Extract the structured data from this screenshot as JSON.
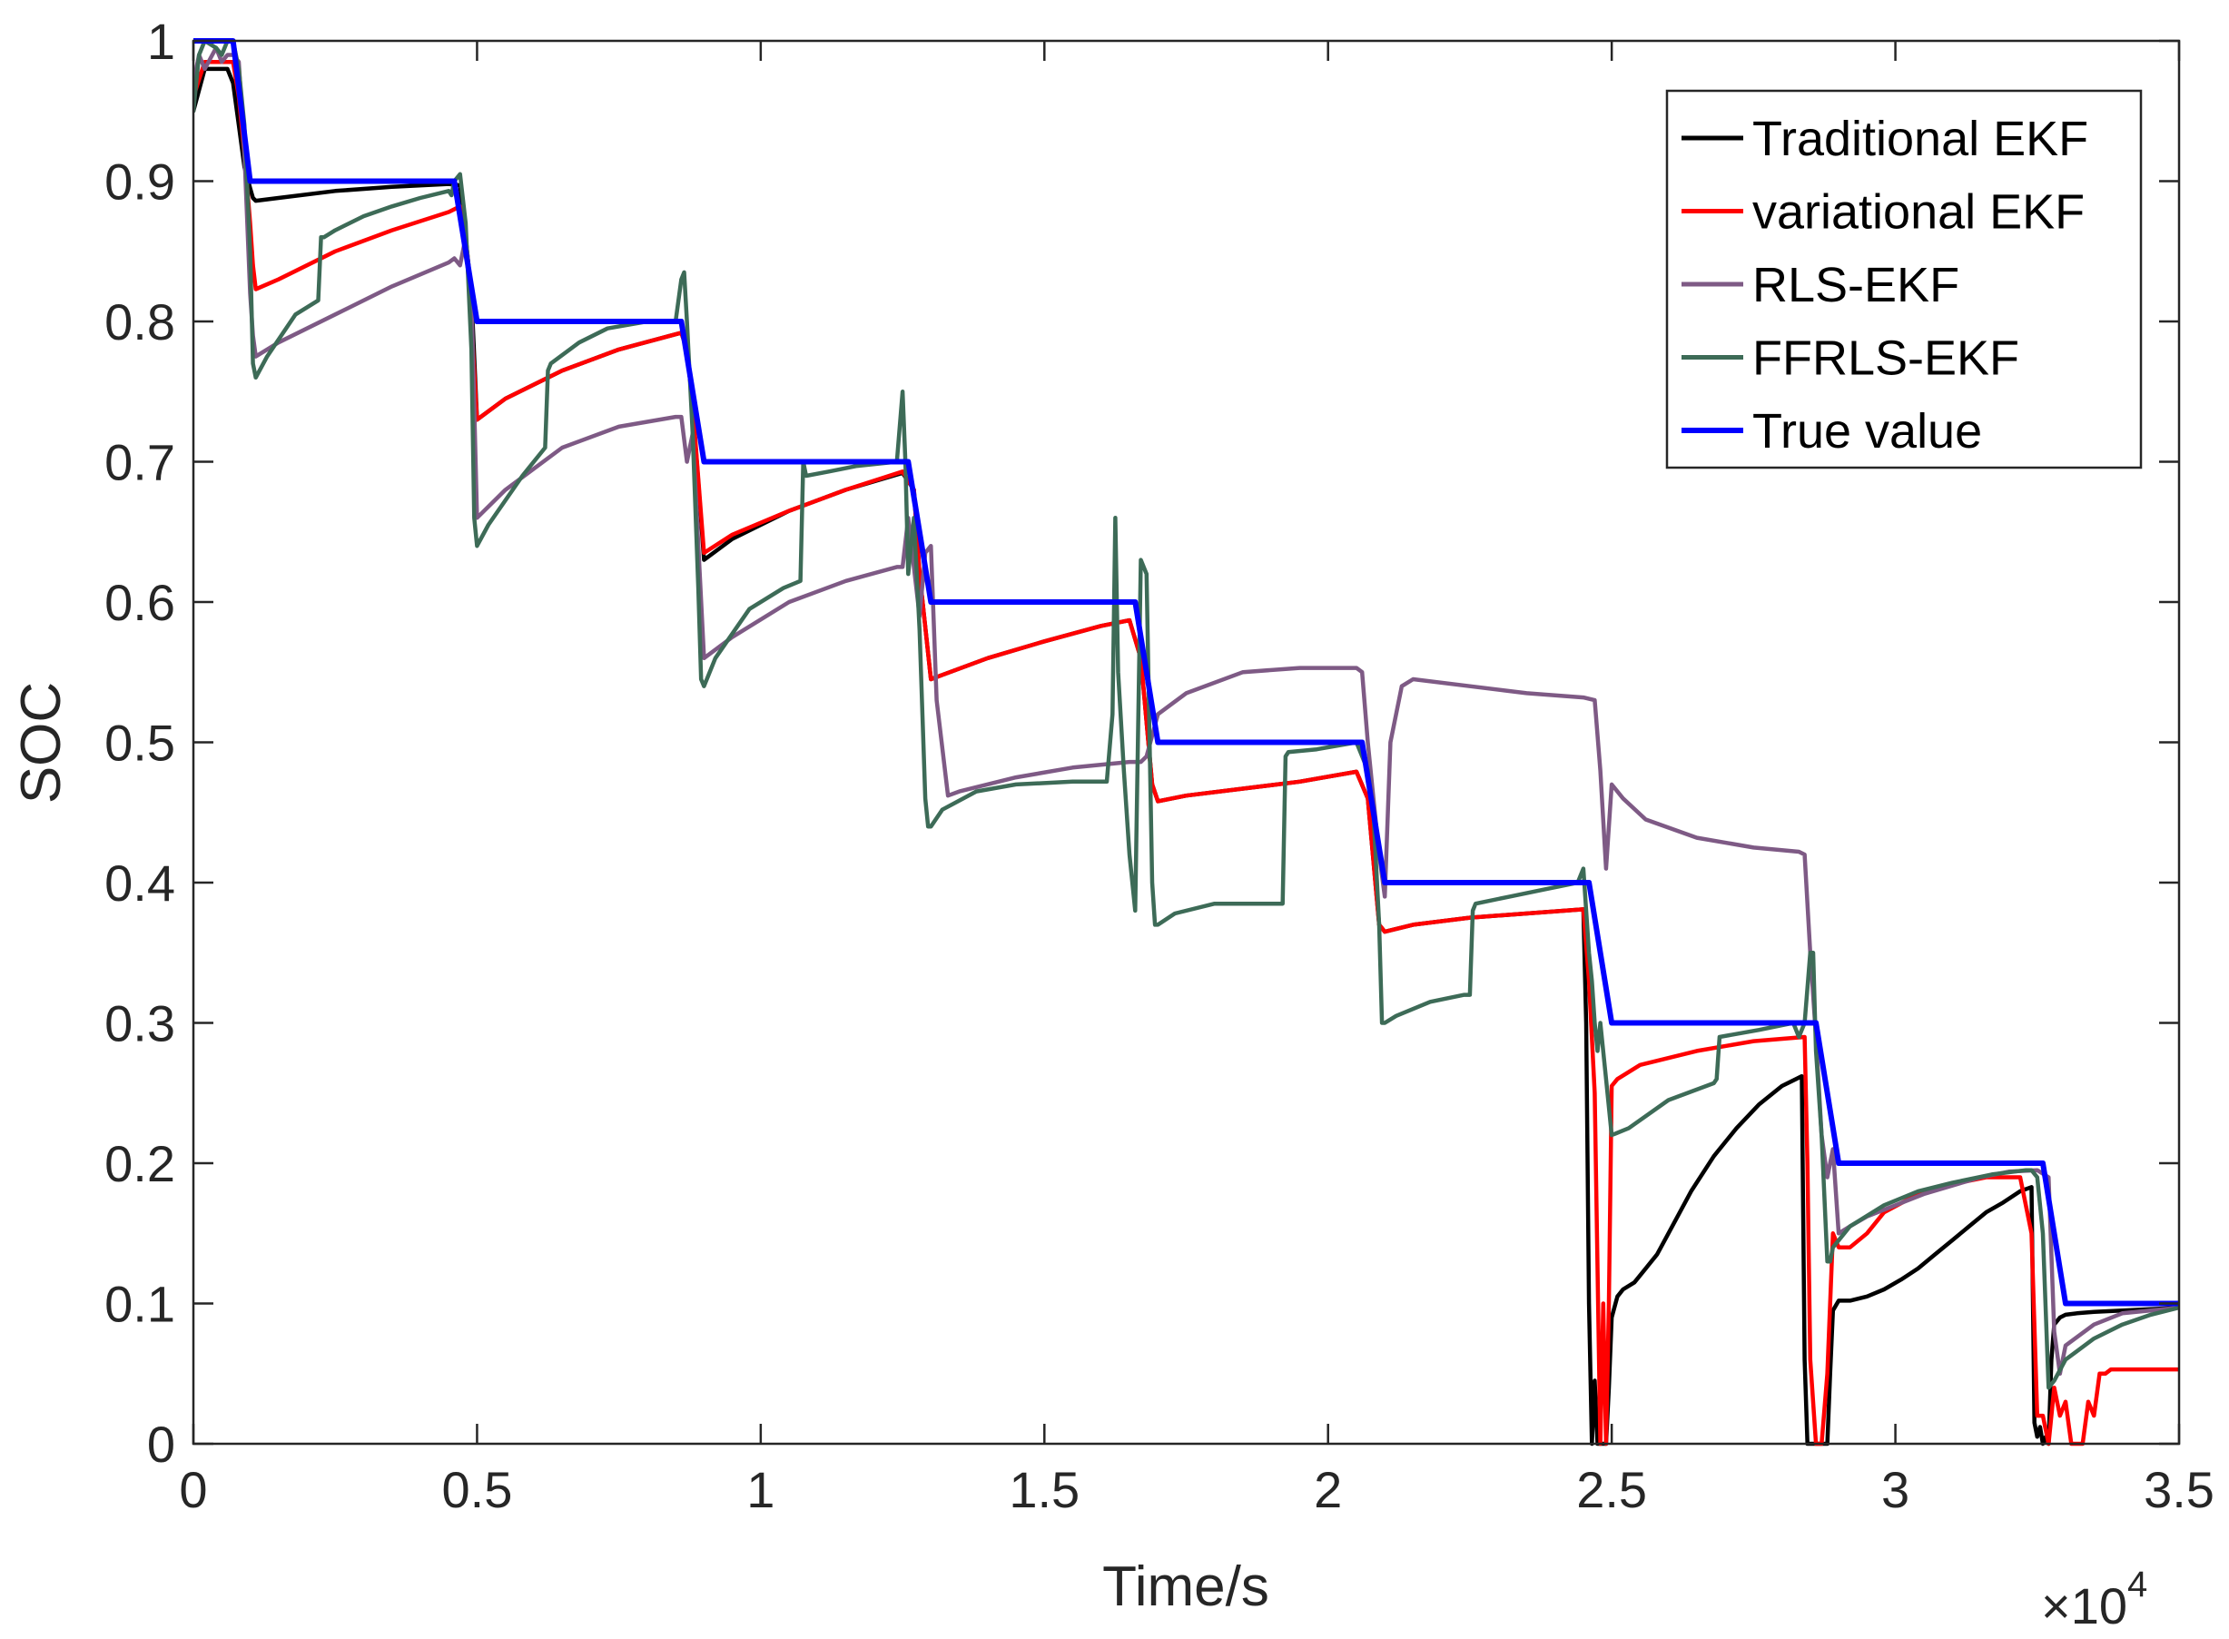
{
  "chart_data": {
    "type": "line",
    "title": "",
    "xlabel": "Time/s",
    "ylabel": "SOC",
    "xlim": [
      0,
      35000
    ],
    "ylim": [
      0,
      1
    ],
    "x_exponent_label": "×10",
    "x_exponent_power": "4",
    "xticks": [
      0,
      5000,
      10000,
      15000,
      20000,
      25000,
      30000,
      35000
    ],
    "xtick_labels": [
      "0",
      "0.5",
      "1",
      "1.5",
      "2",
      "2.5",
      "3",
      "3.5"
    ],
    "yticks": [
      0,
      0.1,
      0.2,
      0.3,
      0.4,
      0.5,
      0.6,
      0.7,
      0.8,
      0.9,
      1
    ],
    "ytick_labels": [
      "0",
      "0.1",
      "0.2",
      "0.3",
      "0.4",
      "0.5",
      "0.6",
      "0.7",
      "0.8",
      "0.9",
      "1"
    ],
    "legend_position": "top-right",
    "series": [
      {
        "name": "Traditional EKF",
        "color": "#000000",
        "x": [
          0,
          200,
          400,
          600,
          700,
          800,
          900,
          1000,
          1050,
          1100,
          1500,
          2500,
          3500,
          4500,
          4700,
          4800,
          4900,
          5000,
          5500,
          6500,
          7500,
          8600,
          8700,
          8800,
          9000,
          9500,
          10500,
          11500,
          12500,
          12700,
          12800,
          13000,
          13200,
          14000,
          15000,
          16000,
          16500,
          16700,
          16900,
          17000,
          17500,
          18500,
          19500,
          20500,
          20700,
          20900,
          21000,
          21500,
          22500,
          23500,
          24500,
          24550,
          24600,
          24650,
          24700,
          24750,
          24800,
          24850,
          24900,
          24950,
          25000,
          25100,
          25200,
          25400,
          25600,
          25800,
          26000,
          26400,
          26800,
          27200,
          27600,
          28000,
          28350,
          28400,
          28450,
          28500,
          28600,
          28700,
          28800,
          28850,
          28900,
          29000,
          29200,
          29500,
          29800,
          30100,
          30400,
          30700,
          31000,
          31300,
          31600,
          31900,
          32200,
          32400,
          32450,
          32500,
          32550,
          32600,
          32650,
          32700,
          32750,
          32800,
          32900,
          33000,
          33200,
          33500,
          34000,
          34500,
          35000
        ],
        "y": [
          0.95,
          0.98,
          0.98,
          0.98,
          0.97,
          0.94,
          0.91,
          0.895,
          0.888,
          0.886,
          0.888,
          0.893,
          0.896,
          0.898,
          0.897,
          0.86,
          0.82,
          0.73,
          0.745,
          0.765,
          0.78,
          0.792,
          0.78,
          0.74,
          0.63,
          0.645,
          0.665,
          0.68,
          0.692,
          0.68,
          0.62,
          0.545,
          0.548,
          0.56,
          0.572,
          0.583,
          0.587,
          0.56,
          0.47,
          0.458,
          0.462,
          0.467,
          0.472,
          0.479,
          0.46,
          0.37,
          0.365,
          0.37,
          0.375,
          0.378,
          0.381,
          0.3,
          0.1,
          0.0,
          0.045,
          0.0,
          0.0,
          0.0,
          0.0,
          0.04,
          0.09,
          0.105,
          0.11,
          0.115,
          0.125,
          0.135,
          0.15,
          0.18,
          0.205,
          0.225,
          0.242,
          0.255,
          0.262,
          0.06,
          0.0,
          0.0,
          0.0,
          0.0,
          0.0,
          0.05,
          0.095,
          0.102,
          0.102,
          0.105,
          0.11,
          0.117,
          0.125,
          0.135,
          0.145,
          0.155,
          0.165,
          0.172,
          0.18,
          0.183,
          0.015,
          0.005,
          0.012,
          0.0,
          0.005,
          0.0,
          0.06,
          0.085,
          0.09,
          0.092,
          0.093,
          0.094,
          0.095,
          0.096,
          0.097
        ]
      },
      {
        "name": "variational EKF",
        "color": "#ff0000",
        "x": [
          0,
          200,
          400,
          600,
          700,
          800,
          900,
          1000,
          1050,
          1100,
          1500,
          2500,
          3500,
          4500,
          4700,
          4800,
          4900,
          5000,
          5500,
          6500,
          7500,
          8600,
          8700,
          8800,
          9000,
          9500,
          10500,
          11500,
          12500,
          12700,
          12800,
          13000,
          13200,
          14000,
          15000,
          16000,
          16500,
          16700,
          16900,
          17000,
          17500,
          18500,
          19500,
          20500,
          20700,
          20900,
          21000,
          21500,
          22500,
          23500,
          24500,
          24600,
          24700,
          24800,
          24850,
          24900,
          24950,
          25000,
          25100,
          25500,
          26500,
          27500,
          28400,
          28450,
          28500,
          28600,
          28700,
          28800,
          28900,
          29000,
          29200,
          29500,
          29800,
          30400,
          31000,
          31600,
          32200,
          32400,
          32500,
          32600,
          32700,
          32800,
          32900,
          33000,
          33100,
          33200,
          33300,
          33400,
          33500,
          33600,
          33700,
          33800,
          33900,
          34000,
          34500,
          35000
        ],
        "y": [
          0.96,
          0.985,
          0.985,
          0.985,
          0.985,
          0.96,
          0.92,
          0.87,
          0.84,
          0.823,
          0.83,
          0.85,
          0.865,
          0.878,
          0.882,
          0.86,
          0.8,
          0.73,
          0.745,
          0.765,
          0.78,
          0.792,
          0.78,
          0.74,
          0.635,
          0.648,
          0.665,
          0.68,
          0.693,
          0.68,
          0.62,
          0.545,
          0.548,
          0.56,
          0.572,
          0.583,
          0.587,
          0.56,
          0.47,
          0.458,
          0.462,
          0.467,
          0.472,
          0.479,
          0.46,
          0.37,
          0.365,
          0.37,
          0.375,
          0.378,
          0.381,
          0.33,
          0.25,
          0.0,
          0.1,
          0.0,
          0.1,
          0.255,
          0.26,
          0.27,
          0.28,
          0.287,
          0.29,
          0.2,
          0.06,
          0.0,
          0.0,
          0.05,
          0.15,
          0.14,
          0.14,
          0.15,
          0.165,
          0.178,
          0.185,
          0.19,
          0.19,
          0.15,
          0.02,
          0.02,
          0.0,
          0.04,
          0.02,
          0.03,
          0.0,
          0.0,
          0.0,
          0.03,
          0.02,
          0.05,
          0.05,
          0.053,
          0.053,
          0.053,
          0.053,
          0.053
        ]
      },
      {
        "name": "RLS-EKF",
        "color": "#7e5a85",
        "x": [
          0,
          100,
          200,
          400,
          500,
          600,
          700,
          800,
          900,
          1000,
          1050,
          1100,
          1500,
          2500,
          3500,
          4500,
          4600,
          4700,
          4800,
          4900,
          5000,
          5500,
          6500,
          7500,
          8500,
          8600,
          8700,
          8800,
          9000,
          9500,
          10500,
          11500,
          12400,
          12500,
          12600,
          12800,
          12900,
          13000,
          13100,
          13300,
          13500,
          14500,
          15500,
          16500,
          16600,
          16700,
          16800,
          17000,
          17500,
          18500,
          19500,
          20300,
          20500,
          20600,
          20700,
          20800,
          20900,
          21000,
          21100,
          21300,
          21500,
          22500,
          23500,
          24500,
          24700,
          24800,
          24900,
          25000,
          25200,
          25600,
          26500,
          27500,
          28300,
          28400,
          28500,
          28600,
          28700,
          28800,
          28900,
          29000,
          29200,
          29500,
          30000,
          30500,
          31000,
          31500,
          32000,
          32500,
          32700,
          32800,
          32900,
          33000,
          33500,
          34000,
          35000
        ],
        "y": [
          0.97,
          0.99,
          0.98,
          0.995,
          0.985,
          0.99,
          0.99,
          0.985,
          0.92,
          0.82,
          0.79,
          0.775,
          0.785,
          0.805,
          0.825,
          0.842,
          0.845,
          0.84,
          0.86,
          0.82,
          0.66,
          0.68,
          0.71,
          0.725,
          0.732,
          0.732,
          0.7,
          0.72,
          0.56,
          0.575,
          0.6,
          0.615,
          0.625,
          0.625,
          0.66,
          0.59,
          0.635,
          0.64,
          0.53,
          0.462,
          0.465,
          0.475,
          0.482,
          0.486,
          0.486,
          0.486,
          0.49,
          0.52,
          0.535,
          0.55,
          0.553,
          0.553,
          0.553,
          0.55,
          0.5,
          0.46,
          0.42,
          0.39,
          0.5,
          0.54,
          0.545,
          0.54,
          0.535,
          0.532,
          0.53,
          0.48,
          0.41,
          0.47,
          0.46,
          0.445,
          0.432,
          0.425,
          0.422,
          0.42,
          0.35,
          0.29,
          0.22,
          0.19,
          0.21,
          0.15,
          0.155,
          0.162,
          0.17,
          0.178,
          0.184,
          0.19,
          0.194,
          0.195,
          0.19,
          0.08,
          0.05,
          0.07,
          0.085,
          0.093,
          0.097
        ]
      },
      {
        "name": "FFRLS-EKF",
        "color": "#3d6b57",
        "x": [
          0,
          100,
          200,
          400,
          500,
          600,
          700,
          800,
          900,
          1000,
          1050,
          1100,
          1300,
          1800,
          2200,
          2250,
          2300,
          2500,
          3000,
          3500,
          4000,
          4500,
          4550,
          4600,
          4700,
          4800,
          4900,
          4950,
          5000,
          5200,
          5800,
          6200,
          6250,
          6300,
          6800,
          7300,
          8000,
          8500,
          8600,
          8650,
          8700,
          8800,
          8900,
          8950,
          9000,
          9200,
          9800,
          10400,
          10700,
          10750,
          10800,
          11200,
          11700,
          12400,
          12500,
          12550,
          12600,
          12700,
          12800,
          12900,
          12950,
          13000,
          13200,
          13800,
          14500,
          15500,
          16100,
          16200,
          16250,
          16300,
          16400,
          16500,
          16600,
          16700,
          16800,
          16900,
          16950,
          17000,
          17300,
          18000,
          19000,
          19200,
          19250,
          19300,
          19800,
          20500,
          20700,
          20800,
          20900,
          20950,
          21000,
          21200,
          21800,
          22400,
          22500,
          22550,
          22600,
          23200,
          23800,
          24400,
          24500,
          24600,
          24650,
          24700,
          24750,
          24800,
          24900,
          25000,
          25300,
          26000,
          26800,
          26850,
          26900,
          27600,
          28200,
          28300,
          28400,
          28500,
          28550,
          28600,
          28700,
          28800,
          28850,
          28900,
          29200,
          29800,
          30400,
          31000,
          31700,
          32300,
          32400,
          32500,
          32600,
          32700,
          32800,
          33000,
          33500,
          34000,
          34500,
          35000
        ],
        "y": [
          0.95,
          0.99,
          1.0,
          0.995,
          0.99,
          1.0,
          1.0,
          0.98,
          0.94,
          0.85,
          0.77,
          0.76,
          0.775,
          0.805,
          0.815,
          0.86,
          0.86,
          0.865,
          0.875,
          0.882,
          0.888,
          0.893,
          0.89,
          0.9,
          0.905,
          0.87,
          0.78,
          0.66,
          0.64,
          0.655,
          0.69,
          0.71,
          0.765,
          0.77,
          0.785,
          0.795,
          0.8,
          0.8,
          0.83,
          0.835,
          0.8,
          0.72,
          0.61,
          0.545,
          0.54,
          0.56,
          0.595,
          0.61,
          0.615,
          0.7,
          0.69,
          0.693,
          0.697,
          0.7,
          0.75,
          0.7,
          0.62,
          0.66,
          0.58,
          0.46,
          0.44,
          0.44,
          0.452,
          0.465,
          0.47,
          0.472,
          0.472,
          0.52,
          0.66,
          0.55,
          0.48,
          0.42,
          0.38,
          0.63,
          0.62,
          0.4,
          0.37,
          0.37,
          0.378,
          0.385,
          0.385,
          0.385,
          0.49,
          0.493,
          0.495,
          0.5,
          0.48,
          0.45,
          0.37,
          0.3,
          0.3,
          0.305,
          0.315,
          0.32,
          0.32,
          0.38,
          0.385,
          0.39,
          0.395,
          0.4,
          0.41,
          0.35,
          0.33,
          0.3,
          0.28,
          0.3,
          0.26,
          0.22,
          0.225,
          0.245,
          0.257,
          0.26,
          0.29,
          0.295,
          0.3,
          0.29,
          0.3,
          0.35,
          0.35,
          0.28,
          0.22,
          0.13,
          0.13,
          0.14,
          0.155,
          0.17,
          0.18,
          0.186,
          0.192,
          0.195,
          0.195,
          0.19,
          0.15,
          0.04,
          0.045,
          0.06,
          0.075,
          0.085,
          0.092,
          0.097
        ]
      },
      {
        "name": "True value",
        "color": "#0000ff",
        "x": [
          0,
          700,
          1000,
          4600,
          5000,
          8600,
          9000,
          12600,
          13000,
          16600,
          17000,
          20600,
          21000,
          24600,
          25000,
          28600,
          29000,
          32600,
          33000,
          35000
        ],
        "y": [
          1.0,
          1.0,
          0.9,
          0.9,
          0.8,
          0.8,
          0.7,
          0.7,
          0.6,
          0.6,
          0.5,
          0.5,
          0.4,
          0.4,
          0.3,
          0.3,
          0.2,
          0.2,
          0.1,
          0.1
        ]
      }
    ]
  }
}
